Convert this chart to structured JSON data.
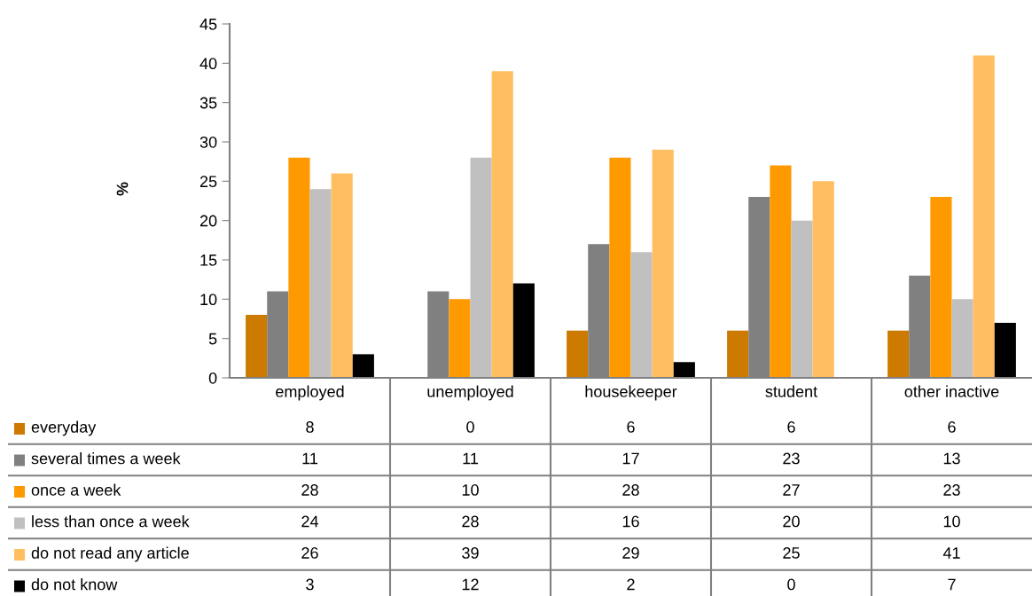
{
  "chart_data": {
    "type": "bar",
    "ylabel": "%",
    "categories": [
      "employed",
      "unemployed",
      "housekeeper",
      "student",
      "other inactive"
    ],
    "series": [
      {
        "name": "everyday",
        "color": "#cc7a00",
        "values": [
          8,
          0,
          6,
          6,
          6
        ]
      },
      {
        "name": "several times a week",
        "color": "#808080",
        "values": [
          11,
          11,
          17,
          23,
          13
        ]
      },
      {
        "name": "once a week",
        "color": "#ff9900",
        "values": [
          28,
          10,
          28,
          27,
          23
        ]
      },
      {
        "name": "less than once a week",
        "color": "#c0c0c0",
        "values": [
          24,
          28,
          16,
          20,
          10
        ]
      },
      {
        "name": "do not read any article",
        "color": "#ffbf60",
        "values": [
          26,
          39,
          29,
          25,
          41
        ]
      },
      {
        "name": "do not know",
        "color": "#000000",
        "values": [
          3,
          12,
          2,
          0,
          7
        ]
      }
    ],
    "ylim": [
      0,
      45
    ],
    "yticks": [
      0,
      5,
      10,
      15,
      20,
      25,
      30,
      35,
      40,
      45
    ],
    "grid": false,
    "legend": "bottom left",
    "data_labels": true
  }
}
